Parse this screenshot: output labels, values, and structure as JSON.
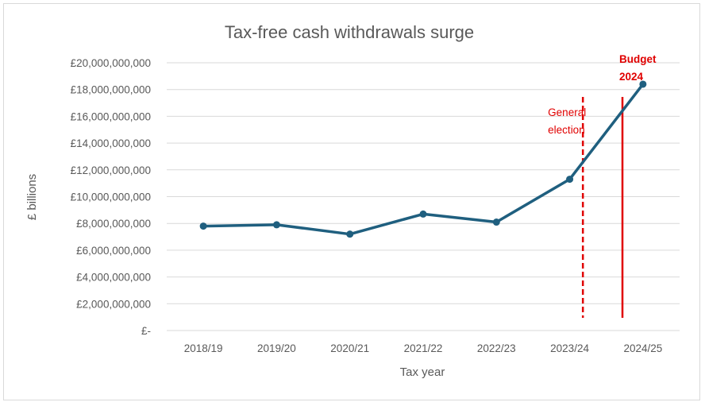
{
  "chart_data": {
    "type": "line",
    "title": "Tax-free cash withdrawals surge",
    "xlabel": "Tax year",
    "ylabel": "£ billions",
    "categories": [
      "2018/19",
      "2019/20",
      "2020/21",
      "2021/22",
      "2022/23",
      "2023/24",
      "2024/25"
    ],
    "series": [
      {
        "values": [
          7800000000,
          7900000000,
          7200000000,
          8700000000,
          8100000000,
          11300000000,
          18400000000
        ],
        "color": "#1f5f7f"
      }
    ],
    "ylim": [
      0,
      20000000000
    ],
    "yticks": [
      0,
      2000000000,
      4000000000,
      6000000000,
      8000000000,
      10000000000,
      12000000000,
      14000000000,
      16000000000,
      18000000000,
      20000000000
    ],
    "ytick_labels": [
      "£-",
      "£2,000,000,000",
      "£4,000,000,000",
      "£6,000,000,000",
      "£8,000,000,000",
      "£10,000,000,000",
      "£12,000,000,000",
      "£14,000,000,000",
      "£16,000,000,000",
      "£18,000,000,000",
      "£20,000,000,000"
    ],
    "grid": true,
    "annotations": [
      {
        "lines": [
          "General",
          "election"
        ],
        "style": "dashed",
        "color": "#e00000",
        "position_between": [
          5,
          6
        ],
        "fraction": 0.18
      },
      {
        "lines": [
          "Budget",
          "2024"
        ],
        "style": "solid",
        "color": "#e00000",
        "position_between": [
          5,
          6
        ],
        "fraction": 0.72
      }
    ],
    "gridline_color": "#d9d9d9"
  }
}
